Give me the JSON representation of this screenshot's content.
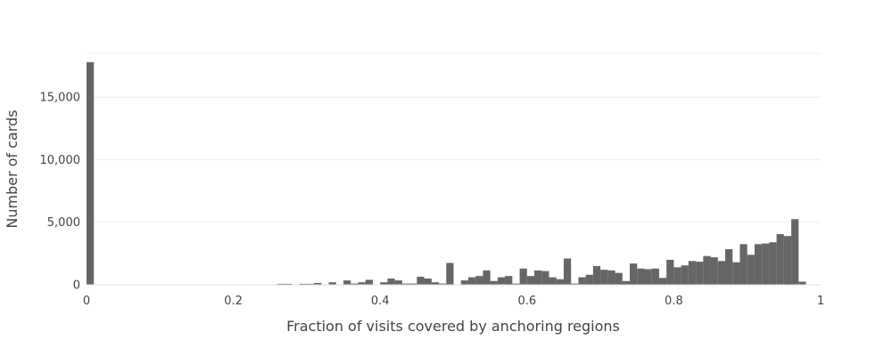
{
  "chart_data": {
    "type": "bar",
    "title": "",
    "xlabel": "Fraction of visits covered by anchoring regions",
    "ylabel": "Number of cards",
    "xlim": [
      0,
      1
    ],
    "ylim": [
      0,
      18500
    ],
    "grid": true,
    "x_ticks": [
      {
        "value": 0,
        "label": "0"
      },
      {
        "value": 0.2,
        "label": "0.2"
      },
      {
        "value": 0.4,
        "label": "0.4"
      },
      {
        "value": 0.6,
        "label": "0.6"
      },
      {
        "value": 0.8,
        "label": "0.8"
      },
      {
        "value": 1,
        "label": "1"
      }
    ],
    "y_ticks": [
      {
        "value": 0,
        "label": "0"
      },
      {
        "value": 5000,
        "label": "5,000"
      },
      {
        "value": 10000,
        "label": "10,000"
      },
      {
        "value": 15000,
        "label": "15,000"
      }
    ],
    "bin_width": 0.01,
    "bin_starts": [
      0.0,
      0.01,
      0.02,
      0.03,
      0.04,
      0.05,
      0.06,
      0.07,
      0.08,
      0.09,
      0.1,
      0.11,
      0.12,
      0.13,
      0.14,
      0.15,
      0.16,
      0.17,
      0.18,
      0.19,
      0.2,
      0.21,
      0.22,
      0.23,
      0.24,
      0.25,
      0.26,
      0.27,
      0.28,
      0.29,
      0.3,
      0.31,
      0.32,
      0.33,
      0.34,
      0.35,
      0.36,
      0.37,
      0.38,
      0.39,
      0.4,
      0.41,
      0.42,
      0.43,
      0.44,
      0.45,
      0.46,
      0.47,
      0.48,
      0.49,
      0.5,
      0.51,
      0.52,
      0.53,
      0.54,
      0.55,
      0.56,
      0.57,
      0.58,
      0.59,
      0.6,
      0.61,
      0.62,
      0.63,
      0.64,
      0.65,
      0.66,
      0.67,
      0.68,
      0.69,
      0.7,
      0.71,
      0.72,
      0.73,
      0.74,
      0.75,
      0.76,
      0.77,
      0.78,
      0.79,
      0.8,
      0.81,
      0.82,
      0.83,
      0.84,
      0.85,
      0.86,
      0.87,
      0.88,
      0.89,
      0.9,
      0.91,
      0.92,
      0.93,
      0.94,
      0.95,
      0.96,
      0.97,
      0.98,
      0.99
    ],
    "values": [
      17800,
      0,
      0,
      0,
      0,
      0,
      0,
      0,
      0,
      0,
      0,
      0,
      0,
      0,
      0,
      0,
      0,
      0,
      0,
      0,
      0,
      0,
      0,
      0,
      0,
      0,
      80,
      80,
      0,
      80,
      80,
      150,
      0,
      200,
      0,
      350,
      100,
      200,
      400,
      0,
      200,
      500,
      350,
      100,
      100,
      650,
      500,
      200,
      100,
      1750,
      0,
      350,
      600,
      700,
      1150,
      300,
      600,
      700,
      100,
      1300,
      700,
      1150,
      1100,
      600,
      450,
      2100,
      100,
      600,
      800,
      1500,
      1200,
      1150,
      950,
      300,
      1700,
      1300,
      1250,
      1300,
      550,
      2000,
      1400,
      1550,
      1900,
      1850,
      2300,
      2200,
      1900,
      2850,
      1800,
      3250,
      2400,
      3250,
      3300,
      3400,
      4050,
      3900,
      5250,
      250,
      0,
      0
    ]
  }
}
